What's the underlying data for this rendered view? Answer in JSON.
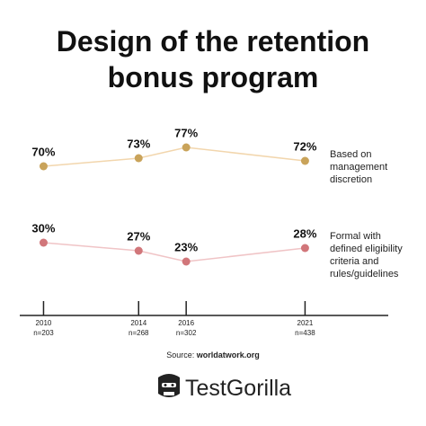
{
  "chart_data": {
    "type": "line",
    "title": "Design of the retention bonus program",
    "x": [
      2010,
      2014,
      2016,
      2021
    ],
    "xlim": [
      2009,
      2024.5
    ],
    "xticks": [
      2010,
      2014,
      2016,
      2021
    ],
    "sample_sizes": [
      "n=203",
      "n=268",
      "n=302",
      "n=438"
    ],
    "series": [
      {
        "name": "Based on management discretion",
        "color": "#c9a35a",
        "line_color": "#f2d6ad",
        "values": [
          70,
          73,
          77,
          72
        ],
        "value_labels": [
          "70%",
          "73%",
          "77%",
          "72%"
        ]
      },
      {
        "name": "Formal with defined eligibility criteria and rules/guidelines",
        "color": "#d1767a",
        "line_color": "#f0c4c6",
        "values": [
          30,
          27,
          23,
          28
        ],
        "value_labels": [
          "30%",
          "27%",
          "23%",
          "28%"
        ]
      }
    ],
    "source_label": "Source:",
    "source": "worldatwork.org",
    "brand": "TestGorilla"
  }
}
